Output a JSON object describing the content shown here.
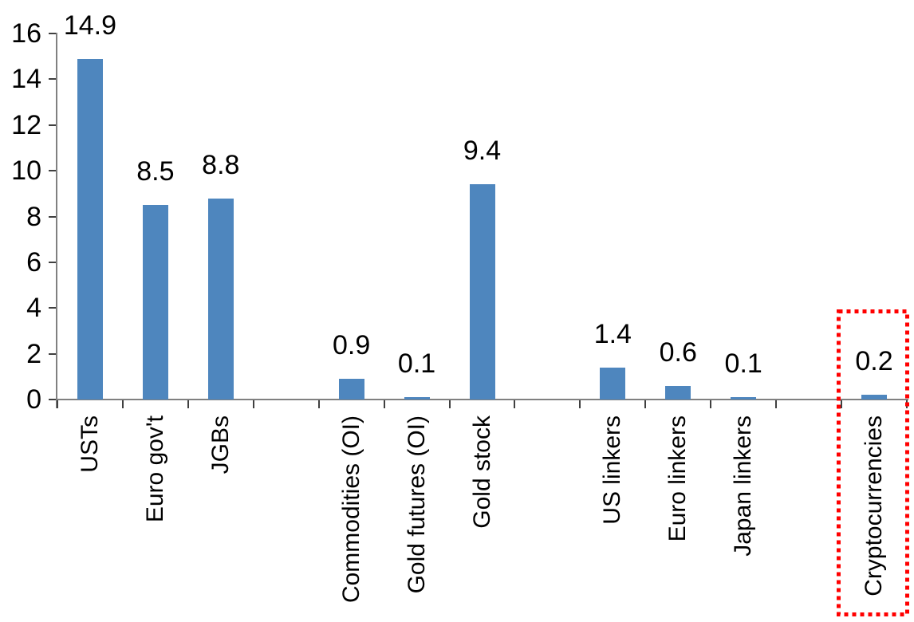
{
  "chart_data": {
    "type": "bar",
    "title": "",
    "xlabel": "",
    "ylabel": "",
    "categories": [
      "USTs",
      "Euro gov't",
      "JGBs",
      "",
      "Commodities (OI)",
      "Gold futures (OI)",
      "Gold stock",
      "",
      "US linkers",
      "Euro linkers",
      "Japan linkers",
      "",
      "Cryptocurrencies"
    ],
    "values": [
      14.9,
      8.5,
      8.8,
      null,
      0.9,
      0.1,
      9.4,
      null,
      1.4,
      0.6,
      0.1,
      null,
      0.2
    ],
    "data_labels": [
      "14.9",
      "8.5",
      "8.8",
      null,
      "0.9",
      "0.1",
      "9.4",
      null,
      "1.4",
      "0.6",
      "0.1",
      null,
      "0.2"
    ],
    "ylim": [
      0,
      16
    ],
    "ytick_step": 2,
    "ytick_labels": [
      "0",
      "2",
      "4",
      "6",
      "8",
      "10",
      "12",
      "14",
      "16"
    ],
    "grid": false,
    "legend": false,
    "colors": {
      "bar": "#4E86BE",
      "axis": "#808080",
      "tick": "#404040",
      "text": "#000000",
      "highlight": "#FF0000"
    },
    "highlight": {
      "category": "Cryptocurrencies",
      "index": 12,
      "style": "red-dotted-box"
    }
  }
}
